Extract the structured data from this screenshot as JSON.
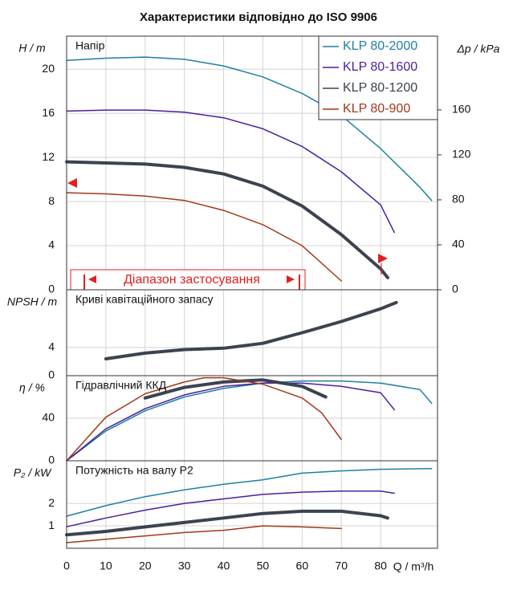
{
  "chart_data": [
    {
      "type": "line",
      "title": "Характеристики відповідно до ISO 9906",
      "panel_label": "Напір",
      "ylabel": "H / m",
      "y2label": "Δp / kPa",
      "annotation": "Діапазон застосування",
      "legend": "upper right",
      "xlim": [
        0,
        94.5
      ],
      "ylim": [
        0,
        23
      ],
      "yticks": [
        0,
        4,
        8,
        12,
        16,
        20
      ],
      "y2lim": [
        0,
        225.6
      ],
      "y2ticks": [
        0,
        40,
        80,
        120,
        160
      ],
      "grid": true,
      "series": [
        {
          "name": "KLP 80-2000",
          "color": "#1f7fa3",
          "line_width": 1.5,
          "x": [
            0,
            10,
            20,
            30,
            40,
            50,
            60,
            70,
            80,
            90,
            93
          ],
          "values": [
            20.8,
            21.0,
            21.1,
            20.9,
            20.3,
            19.3,
            17.8,
            15.8,
            12.8,
            9.3,
            8.1
          ]
        },
        {
          "name": "KLP 80-1600",
          "color": "#4a1fa0",
          "line_width": 1.5,
          "x": [
            0,
            10,
            20,
            30,
            40,
            50,
            60,
            70,
            80,
            83.5
          ],
          "values": [
            16.2,
            16.3,
            16.3,
            16.1,
            15.6,
            14.6,
            13.0,
            10.7,
            7.7,
            5.2
          ]
        },
        {
          "name": "KLP 80-1200",
          "color": "#3c4350",
          "line_width": 4,
          "x": [
            0,
            10,
            20,
            30,
            40,
            50,
            60,
            70,
            80,
            81.8
          ],
          "values": [
            11.6,
            11.5,
            11.4,
            11.1,
            10.5,
            9.4,
            7.6,
            5.0,
            1.9,
            1.1
          ]
        },
        {
          "name": "KLP 80-900",
          "color": "#a3381a",
          "line_width": 1.5,
          "x": [
            0,
            10,
            20,
            30,
            40,
            50,
            60,
            70
          ],
          "values": [
            8.8,
            8.7,
            8.5,
            8.1,
            7.2,
            5.9,
            4.0,
            0.8
          ]
        }
      ]
    },
    {
      "type": "line",
      "panel_label": "Криві кавітаційного запасу",
      "ylabel": "NPSH / m",
      "xlim": [
        0,
        94.5
      ],
      "ylim": [
        0,
        12.2
      ],
      "yticks": [
        0,
        4
      ],
      "grid": true,
      "series": [
        {
          "color": "#3c4350",
          "line_width": 4,
          "x": [
            10,
            20,
            30,
            40,
            50,
            60,
            70,
            80,
            84
          ],
          "values": [
            2.4,
            3.2,
            3.7,
            3.9,
            4.6,
            6.1,
            7.7,
            9.5,
            10.4
          ]
        }
      ]
    },
    {
      "type": "line",
      "panel_label": "Гідравлічний ККД",
      "ylabel": "η / %",
      "xlim": [
        0,
        94.5
      ],
      "ylim": [
        0,
        80
      ],
      "yticks": [
        0,
        40
      ],
      "grid": true,
      "series": [
        {
          "color": "#1f7fa3",
          "line_width": 1.5,
          "x": [
            0,
            10,
            20,
            30,
            40,
            50,
            60,
            70,
            80,
            90,
            93
          ],
          "values": [
            0,
            28,
            47,
            60,
            68,
            73,
            75,
            75,
            73,
            67,
            54
          ]
        },
        {
          "color": "#4a1fa0",
          "line_width": 1.5,
          "x": [
            0,
            10,
            20,
            30,
            40,
            50,
            60,
            70,
            80,
            83.5
          ],
          "values": [
            0,
            30,
            49,
            62,
            70,
            73,
            73,
            70,
            64,
            48
          ]
        },
        {
          "color": "#3c4350",
          "line_width": 4,
          "x": [
            20,
            30,
            40,
            50,
            60,
            66
          ],
          "values": [
            59,
            69,
            74,
            76,
            70,
            60
          ]
        },
        {
          "color": "#a3381a",
          "line_width": 1.5,
          "x": [
            0,
            10,
            20,
            30,
            35,
            40,
            50,
            60,
            65,
            70
          ],
          "values": [
            0,
            41,
            63,
            74,
            78,
            78,
            72,
            59,
            45,
            20
          ]
        }
      ]
    },
    {
      "type": "line",
      "panel_label": "Потужність на валу P2",
      "ylabel": "P₂ / kW",
      "xlabel": "Q / m³/h",
      "xlim": [
        0,
        94.5
      ],
      "ylim": [
        0,
        3.9
      ],
      "yticks": [
        1,
        2
      ],
      "xticks": [
        0,
        10,
        20,
        30,
        40,
        50,
        60,
        70,
        80
      ],
      "grid": true,
      "series": [
        {
          "color": "#1f7fa3",
          "line_width": 1.5,
          "x": [
            0,
            10,
            20,
            30,
            40,
            50,
            60,
            70,
            80,
            93
          ],
          "values": [
            1.43,
            1.9,
            2.3,
            2.6,
            2.85,
            3.05,
            3.35,
            3.45,
            3.52,
            3.55
          ]
        },
        {
          "color": "#4a1fa0",
          "line_width": 1.5,
          "x": [
            0,
            10,
            20,
            30,
            40,
            50,
            60,
            70,
            80,
            83.5
          ],
          "values": [
            0.96,
            1.35,
            1.7,
            2.0,
            2.2,
            2.4,
            2.5,
            2.55,
            2.55,
            2.45
          ]
        },
        {
          "color": "#3c4350",
          "line_width": 4,
          "x": [
            0,
            10,
            20,
            30,
            40,
            50,
            60,
            70,
            80,
            81.8
          ],
          "values": [
            0.6,
            0.75,
            0.95,
            1.15,
            1.35,
            1.55,
            1.65,
            1.65,
            1.45,
            1.35
          ]
        },
        {
          "color": "#a3381a",
          "line_width": 1.5,
          "x": [
            0,
            10,
            20,
            30,
            40,
            50,
            60,
            70
          ],
          "values": [
            0.25,
            0.4,
            0.55,
            0.7,
            0.8,
            1.0,
            0.95,
            0.88
          ]
        }
      ]
    }
  ]
}
